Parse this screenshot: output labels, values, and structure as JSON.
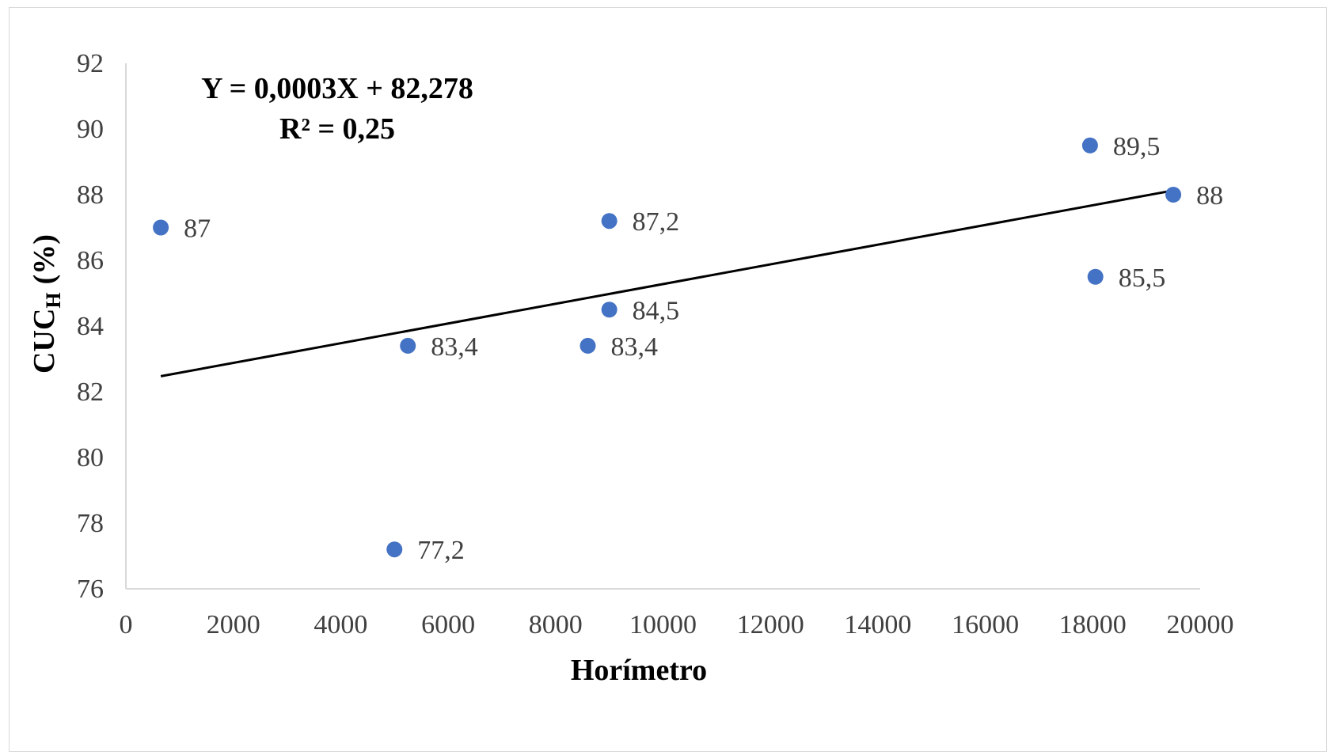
{
  "chart_data": {
    "type": "scatter",
    "xlabel": "Horímetro",
    "ylabel_main": "CUC",
    "ylabel_sub": "H",
    "ylabel_unit": "(%)",
    "xlim": [
      0,
      20000
    ],
    "ylim": [
      76,
      92
    ],
    "x_ticks": [
      0,
      2000,
      4000,
      6000,
      8000,
      10000,
      12000,
      14000,
      16000,
      18000,
      20000
    ],
    "y_ticks": [
      76,
      78,
      80,
      82,
      84,
      86,
      88,
      90,
      92
    ],
    "grid": false,
    "legend": "none",
    "marker_color": "#4472C4",
    "trendline_color": "#000000",
    "equation": "Y = 0,0003X + 82,278",
    "r_squared": "R² = 0,25",
    "trendline": {
      "slope": 0.0003,
      "intercept": 82.278,
      "x_range": [
        650,
        19500
      ]
    },
    "points": [
      {
        "x": 650,
        "y": 87,
        "label": "87"
      },
      {
        "x": 5000,
        "y": 77.2,
        "label": "77,2"
      },
      {
        "x": 5250,
        "y": 83.4,
        "label": "83,4"
      },
      {
        "x": 8600,
        "y": 83.4,
        "label": "83,4"
      },
      {
        "x": 9000,
        "y": 84.5,
        "label": "84,5"
      },
      {
        "x": 9000,
        "y": 87.2,
        "label": "87,2"
      },
      {
        "x": 17950,
        "y": 89.5,
        "label": "89,5"
      },
      {
        "x": 18050,
        "y": 85.5,
        "label": "85,5"
      },
      {
        "x": 19500,
        "y": 88,
        "label": "88"
      }
    ]
  }
}
